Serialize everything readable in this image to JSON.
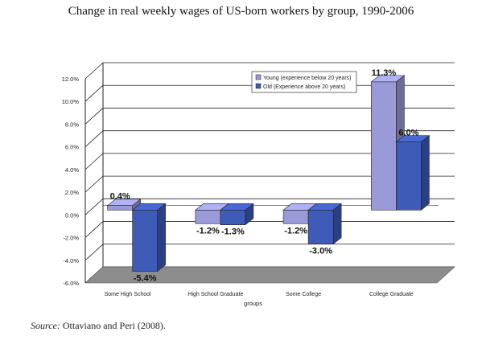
{
  "title": "Change in real weekly wages of US-born workers by group, 1990-2006",
  "source": {
    "label": "Source:",
    "text": " Ottaviano and Peri (2008)."
  },
  "chart_data": {
    "type": "bar",
    "categories": [
      "Some High School",
      "High School Graduate",
      "Some College",
      "College Graduate"
    ],
    "series": [
      {
        "name": "Young (experience below 20 years)",
        "values": [
          0.4,
          -1.2,
          -1.2,
          11.3
        ],
        "labels": [
          "0.4%",
          "-1.2%",
          "-1.2%",
          "11.3%"
        ],
        "color": "#9a9ad8"
      },
      {
        "name": "Old (Experience above 20 years)",
        "values": [
          -5.4,
          -1.3,
          -3.0,
          6.0
        ],
        "labels": [
          "-5.4%",
          "-1.3%",
          "-3.0%",
          "6.0%"
        ],
        "color": "#3f5bb8"
      }
    ],
    "xlabel": "groups",
    "ylim": [
      -6,
      12
    ],
    "yticks": [
      "-6.0%",
      "-4.0%",
      "-2.0%",
      "0.0%",
      "2.0%",
      "4.0%",
      "6.0%",
      "8.0%",
      "10.0%",
      "12.0%"
    ],
    "grid": true,
    "legend_position": "top-right",
    "floor_color": "#8c8c8c"
  }
}
